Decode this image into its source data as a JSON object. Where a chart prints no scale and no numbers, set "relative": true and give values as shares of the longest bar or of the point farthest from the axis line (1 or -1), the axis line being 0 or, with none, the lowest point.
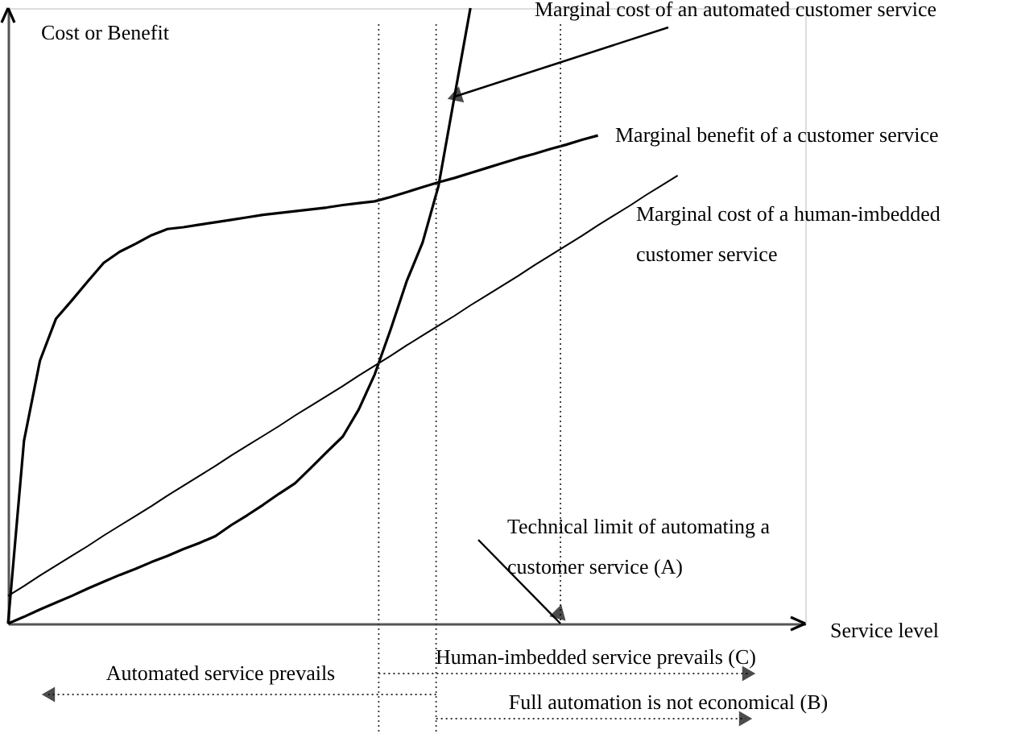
{
  "chart_data": {
    "type": "line",
    "relative": true,
    "xlabel": "Service level",
    "ylabel": "Cost or Benefit",
    "tick_labels": false,
    "categories": [
      null,
      null,
      null,
      null,
      null,
      null,
      null,
      null,
      null,
      null,
      null,
      null,
      null,
      null,
      null,
      null,
      null,
      null,
      null,
      null,
      null,
      null,
      null,
      null,
      null,
      null,
      null,
      null,
      null,
      null,
      null,
      null,
      null,
      null,
      null,
      null,
      null,
      null,
      null,
      null,
      null,
      null,
      null,
      null,
      null,
      null,
      null,
      null,
      null,
      null,
      null
    ],
    "series": [
      {
        "name": "Marginal cost of an automated customer service",
        "color": "#000000",
        "values": [
          0,
          0.011,
          0.023,
          0.034,
          0.045,
          0.057,
          0.068,
          0.079,
          0.089,
          0.1,
          0.11,
          0.121,
          0.131,
          0.142,
          0.16,
          0.176,
          0.193,
          0.211,
          0.228,
          0.253,
          0.279,
          0.304,
          0.348,
          0.405,
          0.478,
          0.556,
          0.619,
          0.711,
          0.856,
          1.0,
          null,
          null,
          null,
          null,
          null,
          null,
          null,
          null,
          null,
          null,
          null,
          null,
          null,
          null,
          null,
          null,
          null,
          null,
          null,
          null,
          null
        ]
      },
      {
        "name": "Marginal benefit of a customer service",
        "color": "#000000",
        "values": [
          0,
          0.297,
          0.427,
          0.495,
          0.525,
          0.556,
          0.586,
          0.604,
          0.617,
          0.631,
          0.641,
          0.644,
          0.648,
          0.652,
          0.656,
          0.66,
          0.664,
          0.667,
          0.67,
          0.673,
          0.676,
          0.68,
          0.683,
          0.686,
          0.693,
          0.701,
          0.709,
          0.717,
          0.724,
          0.732,
          0.74,
          0.748,
          0.756,
          0.763,
          0.771,
          0.778,
          0.786,
          0.793,
          null,
          null,
          null,
          null,
          null,
          null,
          null,
          null,
          null,
          null,
          null,
          null,
          null
        ]
      },
      {
        "name": "Marginal cost of a human-imbedded\ncustomer service",
        "color": "#000000",
        "values": [
          0.045,
          0.061,
          0.078,
          0.094,
          0.11,
          0.126,
          0.143,
          0.159,
          0.175,
          0.191,
          0.208,
          0.224,
          0.24,
          0.256,
          0.273,
          0.289,
          0.305,
          0.321,
          0.338,
          0.354,
          0.37,
          0.386,
          0.403,
          0.419,
          0.435,
          0.452,
          0.468,
          0.484,
          0.5,
          0.517,
          0.533,
          0.549,
          0.565,
          0.582,
          0.598,
          0.614,
          0.63,
          0.647,
          0.663,
          0.679,
          0.696,
          0.712,
          0.728,
          null,
          null,
          null,
          null,
          null,
          null,
          null,
          null
        ]
      }
    ],
    "annotations": [
      "Technical limit of automating a\ncustomer service (A)",
      "Automated service prevails",
      "Human-imbedded service prevails (C)",
      "Full automation is not economical (B)"
    ]
  }
}
